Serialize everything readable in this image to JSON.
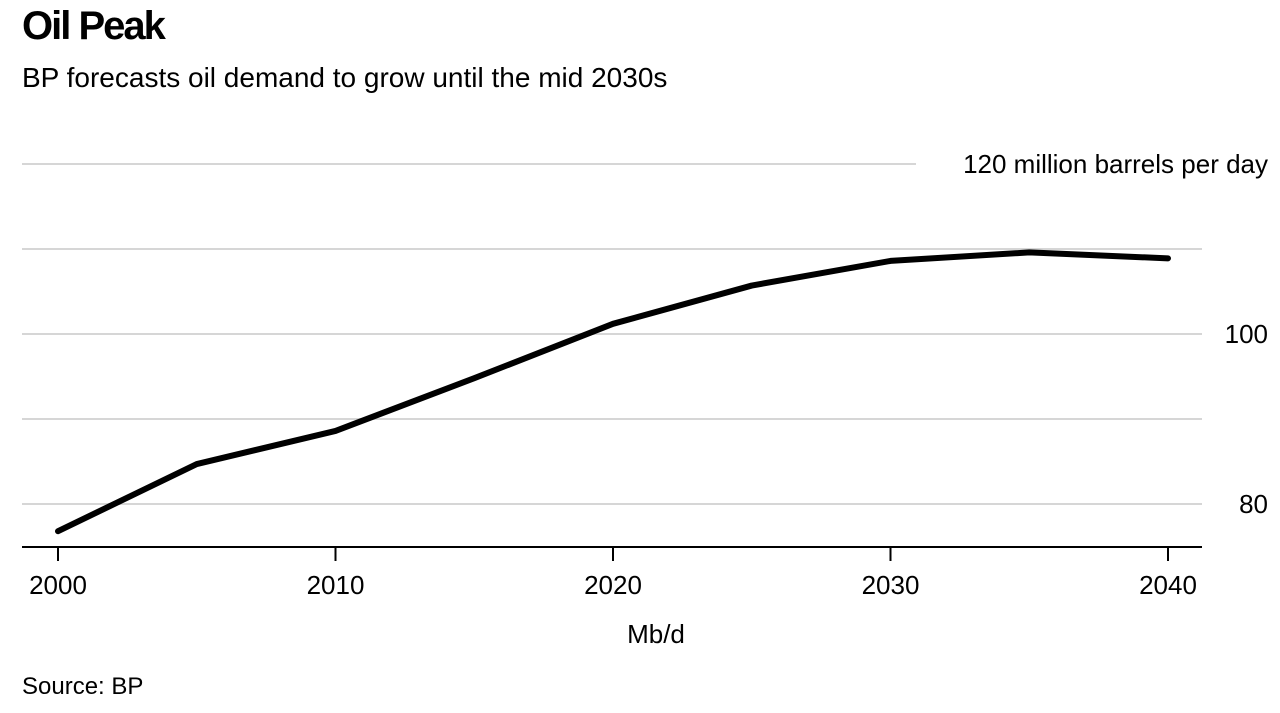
{
  "title": "Oil Peak",
  "subtitle": "BP forecasts oil demand to grow until the mid 2030s",
  "source": "Source: BP",
  "chart_data": {
    "type": "line",
    "xlabel": "Mb/d",
    "ylim": [
      75,
      120
    ],
    "xlim": [
      2000,
      2040
    ],
    "yticks": [
      80,
      90,
      100,
      110,
      120
    ],
    "ytick_labels": [
      "80",
      "",
      "100",
      "",
      "120 million barrels per day"
    ],
    "xticks": [
      2000,
      2010,
      2020,
      2030,
      2040
    ],
    "xtick_labels": [
      "2000",
      "2010",
      "2020",
      "2030",
      "2040"
    ],
    "grid": true,
    "line_color": "#000000",
    "series": [
      {
        "x": [
          2000,
          2005,
          2010,
          2015,
          2020,
          2025,
          2030,
          2035,
          2040
        ],
        "y": [
          76.8,
          84.7,
          88.6,
          94.8,
          101.2,
          105.7,
          108.6,
          109.6,
          108.9
        ]
      }
    ]
  }
}
